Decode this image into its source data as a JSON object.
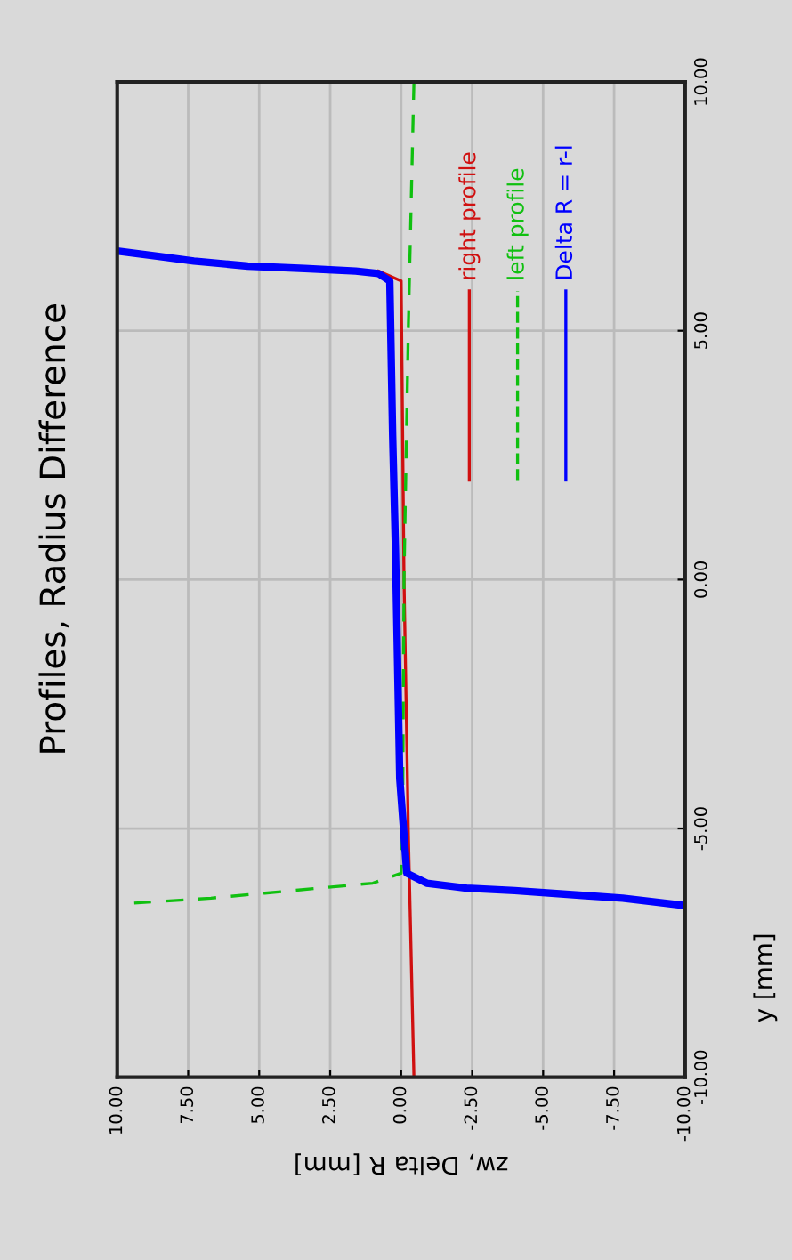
{
  "chart_data": {
    "type": "line",
    "orientation": "horizontal",
    "title": "Profiles, Radius Difference",
    "xlabel": "zw, Delta R [mm]",
    "ylabel": "y [mm]",
    "xlim": [
      10,
      -10
    ],
    "ylim": [
      -10,
      10
    ],
    "xticks": [
      {
        "value": 10,
        "label": "10.00"
      },
      {
        "value": 7.5,
        "label": "7.50"
      },
      {
        "value": 5,
        "label": "5.00"
      },
      {
        "value": 2.5,
        "label": "2.50"
      },
      {
        "value": 0,
        "label": "0.00"
      },
      {
        "value": -2.5,
        "label": "-2.50"
      },
      {
        "value": -5,
        "label": "-5.00"
      },
      {
        "value": -7.5,
        "label": "-7.50"
      },
      {
        "value": -10,
        "label": "-10.00"
      }
    ],
    "yticks": [
      {
        "value": 10,
        "label": "10.00"
      },
      {
        "value": 5,
        "label": "5.00"
      },
      {
        "value": 0,
        "label": "0.00"
      },
      {
        "value": -5,
        "label": "-5.00"
      },
      {
        "value": -10,
        "label": "-10.00"
      }
    ],
    "grid": true,
    "legend": "top right",
    "tick_labels": "xy",
    "series": [
      {
        "name": "right profile",
        "color": "#d01010",
        "line_style": "solid",
        "x": [
          6.2,
          6.0,
          3.0,
          0.0,
          -5.0,
          -10.0
        ],
        "values": [
          0.8,
          0.0,
          -0.05,
          -0.1,
          -0.25,
          -0.45
        ]
      },
      {
        "name": "left profile",
        "color": "#10c010",
        "line_style": "dashed",
        "x": [
          10.0,
          5.0,
          0.0,
          -5.0,
          -5.9,
          -6.1,
          -6.2,
          -6.3,
          -6.4,
          -6.5
        ],
        "values": [
          -0.45,
          -0.25,
          -0.1,
          -0.05,
          0.0,
          1.0,
          2.9,
          4.8,
          6.7,
          9.4
        ]
      },
      {
        "name": "Delta R = r-l",
        "color": "#0000ff",
        "line_style": "solid",
        "x": [
          6.6,
          6.5,
          6.4,
          6.3,
          6.25,
          6.2,
          6.15,
          6.0,
          2.9,
          0.6,
          -4.0,
          -5.9,
          -6.1,
          -6.2,
          -6.25,
          -6.35,
          -6.4,
          -6.55
        ],
        "values": [
          10.0,
          8.6,
          7.3,
          5.4,
          3.4,
          1.6,
          0.8,
          0.4,
          0.3,
          0.2,
          0.05,
          -0.2,
          -0.9,
          -2.3,
          -4.0,
          -6.5,
          -7.8,
          -10.0
        ]
      }
    ]
  }
}
